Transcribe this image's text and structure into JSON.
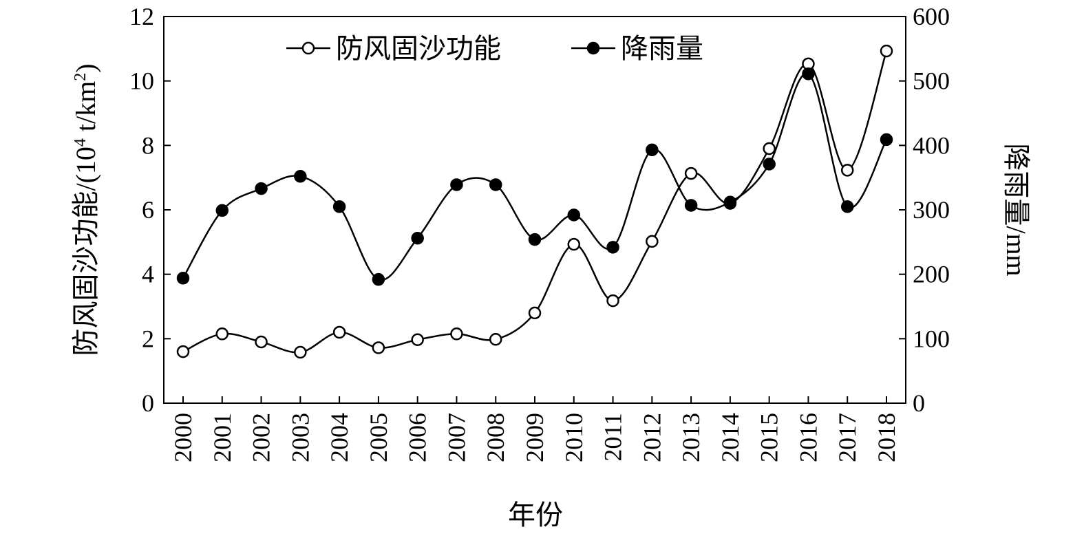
{
  "chart_data": {
    "type": "line",
    "x": [
      2000,
      2001,
      2002,
      2003,
      2004,
      2005,
      2006,
      2007,
      2008,
      2009,
      2010,
      2011,
      2012,
      2013,
      2014,
      2015,
      2016,
      2017,
      2018
    ],
    "xlabel": "年份",
    "ylabel_left": {
      "prefix": "防风固沙功能/(10",
      "sup1": "4",
      "mid": " t/km",
      "sup2": "2",
      "suffix": ")"
    },
    "ylabel_right": "降雨量/mm",
    "ylim_left": [
      0,
      12
    ],
    "ylim_right": [
      0,
      600
    ],
    "yticks_left": [
      0,
      2,
      4,
      6,
      8,
      10,
      12
    ],
    "yticks_right": [
      0,
      100,
      200,
      300,
      400,
      500,
      600
    ],
    "legend_position": "top-center",
    "grid": false,
    "smoothed": true,
    "series": [
      {
        "name": "防风固沙功能",
        "axis": "left",
        "marker": "open-circle",
        "color": "#000000",
        "values": [
          1.6,
          2.15,
          1.9,
          1.58,
          2.2,
          1.72,
          1.97,
          2.15,
          1.98,
          2.8,
          4.93,
          3.18,
          5.02,
          7.13,
          6.2,
          7.9,
          10.53,
          7.23,
          10.93
        ]
      },
      {
        "name": "降雨量",
        "axis": "right",
        "marker": "filled-circle",
        "color": "#000000",
        "values": [
          194,
          299,
          333,
          352,
          305,
          192,
          256,
          339,
          339,
          254,
          292,
          242,
          393,
          307,
          312,
          371,
          511,
          305,
          409
        ]
      }
    ]
  }
}
